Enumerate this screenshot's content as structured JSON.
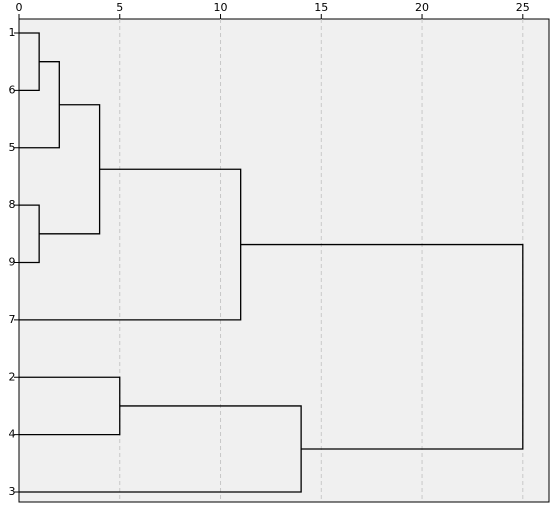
{
  "chart_data": {
    "type": "dendrogram",
    "leaves": [
      1,
      6,
      5,
      8,
      9,
      7,
      2,
      4,
      3
    ],
    "merges": [
      {
        "a": 0,
        "b": 1,
        "height": 1
      },
      {
        "a": 9,
        "b": 2,
        "height": 2
      },
      {
        "a": 3,
        "b": 4,
        "height": 1
      },
      {
        "a": 10,
        "b": 11,
        "height": 4
      },
      {
        "a": 12,
        "b": 5,
        "height": 11
      },
      {
        "a": 6,
        "b": 7,
        "height": 5
      },
      {
        "a": 14,
        "b": 8,
        "height": 14
      },
      {
        "a": 13,
        "b": 15,
        "height": 25
      }
    ],
    "xlim": [
      0,
      26.3
    ],
    "xticks": [
      0,
      5,
      10,
      15,
      20,
      25
    ],
    "grid": true,
    "color": "#000000"
  }
}
